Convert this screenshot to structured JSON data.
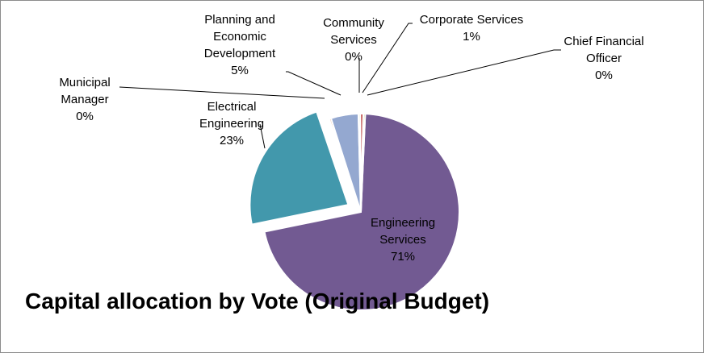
{
  "chart_data": {
    "type": "pie",
    "title": "Capital allocation by Vote (Original Budget)",
    "slices": [
      {
        "label": "Engineering Services",
        "label_lines": [
          "Engineering",
          "Services"
        ],
        "pct_label": "71%",
        "value": 71.0,
        "color": "#725a92"
      },
      {
        "label": "Electrical Engineering",
        "label_lines": [
          "Electrical",
          "Engineering"
        ],
        "pct_label": "23%",
        "value": 23.0,
        "color": "#4298ac",
        "exploded": true
      },
      {
        "label": "Municipal Manager",
        "label_lines": [
          "Municipal",
          "Manager"
        ],
        "pct_label": "0%",
        "value": 0.3,
        "color": "#e07a3a"
      },
      {
        "label": "Planning and Economic Development",
        "label_lines": [
          "Planning and",
          "Economic",
          "Development"
        ],
        "pct_label": "5%",
        "value": 4.5,
        "color": "#94a8d0"
      },
      {
        "label": "Community Services",
        "label_lines": [
          "Community",
          "Services"
        ],
        "pct_label": "0%",
        "value": 0.3,
        "color": "#b0c97c"
      },
      {
        "label": "Corporate Services",
        "label_lines": [
          "Corporate Services"
        ],
        "pct_label": "1%",
        "value": 0.5,
        "color": "#c0504d"
      },
      {
        "label": "Chief Financial Officer",
        "label_lines": [
          "Chief Financial",
          "Officer"
        ],
        "pct_label": "0%",
        "value": 0.3,
        "color": "#9bbb59"
      }
    ],
    "legend": "none"
  }
}
